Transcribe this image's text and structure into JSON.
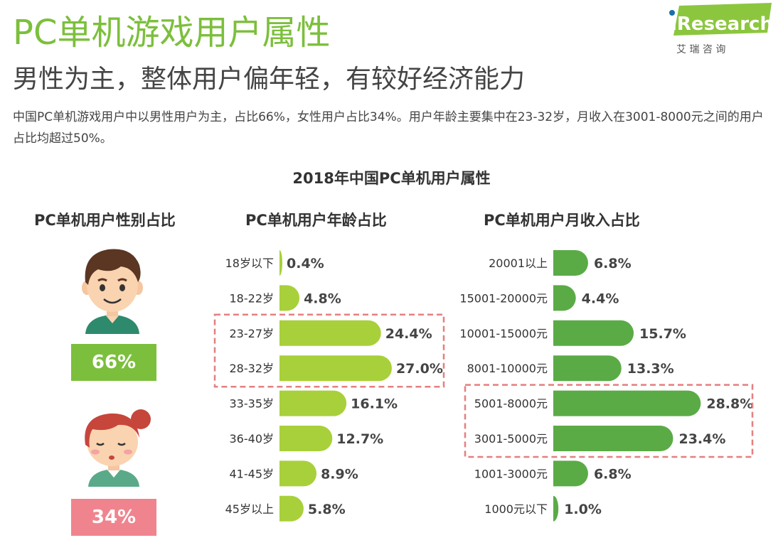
{
  "header": {
    "title": "PC单机游戏用户属性",
    "subtitle": "男性为主，整体用户偏年轻，有较好经济能力",
    "summary": "中国PC单机游戏用户中以男性用户为主，占比66%，女性用户占比34%。用户年龄主要集中在23-32岁，月收入在3001-8000元之间的用户占比均超过50%。"
  },
  "logo": {
    "brand": "iResearch",
    "cn": "艾 瑞 咨 询"
  },
  "chart_title": "2018年中国PC单机用户属性",
  "gender": {
    "title": "PC单机用户性别占比",
    "male_label": "66%",
    "female_label": "34%"
  },
  "colors": {
    "title_green": "#7cbf3c",
    "age_bar": "#a8d03a",
    "income_bar": "#5aab46",
    "male_box": "#7cbf3c",
    "female_box": "#f0848e",
    "highlight": "#e57f7f"
  },
  "chart_data": [
    {
      "type": "pie",
      "title": "PC单机用户性别占比",
      "categories": [
        "男",
        "女"
      ],
      "values": [
        66,
        34
      ],
      "unit": "%"
    },
    {
      "type": "bar",
      "orientation": "horizontal",
      "title": "PC单机用户年龄占比",
      "categories": [
        "18岁以下",
        "18-22岁",
        "23-27岁",
        "28-32岁",
        "33-35岁",
        "36-40岁",
        "41-45岁",
        "45岁以上"
      ],
      "values": [
        0.4,
        4.8,
        24.4,
        27.0,
        16.1,
        12.7,
        8.9,
        5.8
      ],
      "labels": [
        "0.4%",
        "4.8%",
        "24.4%",
        "27.0%",
        "16.1%",
        "12.7%",
        "8.9%",
        "5.8%"
      ],
      "unit": "%",
      "highlighted": [
        "23-27岁",
        "28-32岁"
      ]
    },
    {
      "type": "bar",
      "orientation": "horizontal",
      "title": "PC单机用户月收入占比",
      "categories": [
        "20001以上",
        "15001-20000元",
        "10001-15000元",
        "8001-10000元",
        "5001-8000元",
        "3001-5000元",
        "1001-3000元",
        "1000元以下"
      ],
      "values": [
        6.8,
        4.4,
        15.7,
        13.3,
        28.8,
        23.4,
        6.8,
        1.0
      ],
      "labels": [
        "6.8%",
        "4.4%",
        "15.7%",
        "13.3%",
        "28.8%",
        "23.4%",
        "6.8%",
        "1.0%"
      ],
      "unit": "%",
      "highlighted": [
        "5001-8000元",
        "3001-5000元"
      ]
    }
  ]
}
